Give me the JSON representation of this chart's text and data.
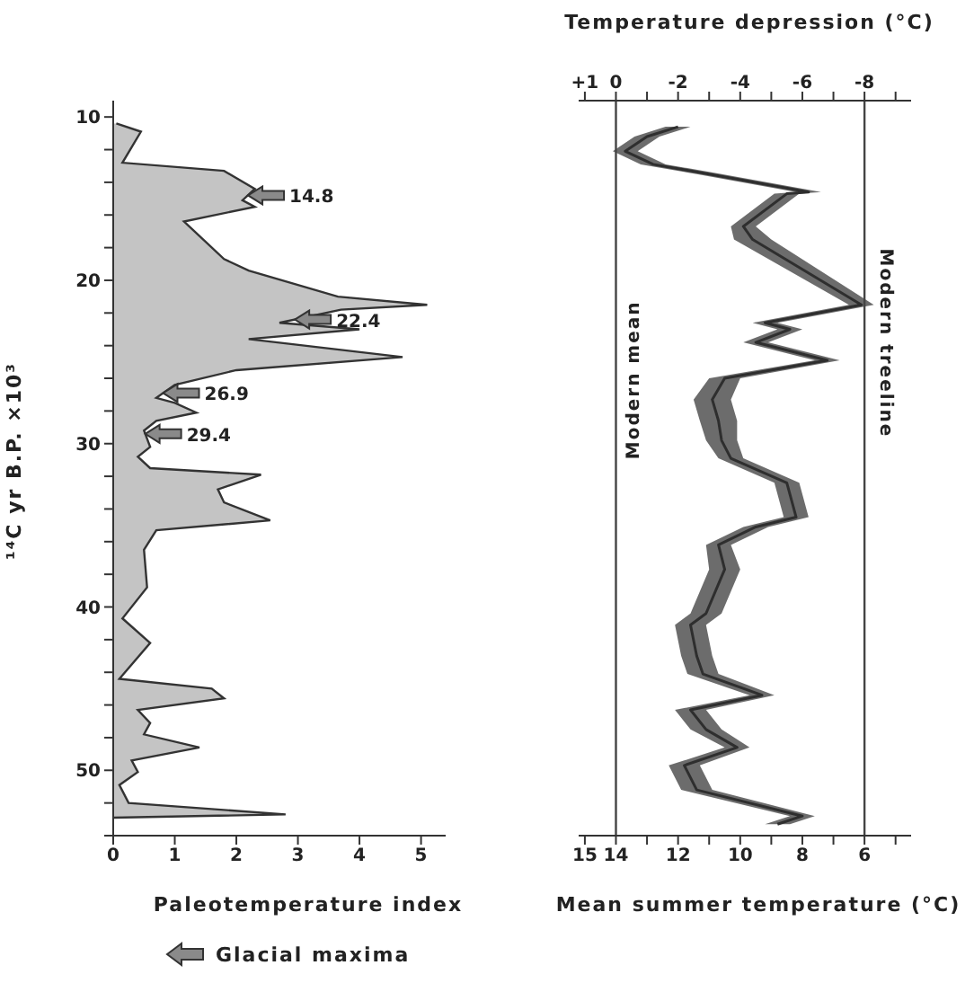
{
  "chart_data": [
    {
      "type": "area",
      "xlabel": "Paleotemperature index",
      "ylabel": "¹⁴C yr B.P. ×10³",
      "orientation": "horizontal",
      "color": "#c4c4c4",
      "x": [
        10.4,
        10.9,
        12.8,
        13.3,
        14.4,
        15.1,
        15.5,
        16.4,
        18.7,
        19.4,
        21.0,
        21.5,
        21.8,
        22.6,
        23.0,
        23.6,
        24.7,
        25.5,
        26.4,
        27.2,
        27.5,
        28.1,
        28.6,
        29.2,
        30.2,
        30.8,
        31.5,
        31.9,
        32.8,
        33.6,
        34.7,
        35.3,
        36.5,
        38.8,
        40.7,
        42.2,
        44.4,
        45.0,
        45.6,
        46.3,
        47.1,
        47.8,
        48.6,
        49.4,
        50.1,
        50.9,
        52.0,
        52.7,
        52.9
      ],
      "values": [
        0.05,
        0.45,
        0.15,
        1.8,
        2.3,
        2.1,
        2.3,
        1.15,
        1.8,
        2.2,
        3.65,
        5.1,
        3.7,
        2.7,
        4.0,
        2.2,
        4.7,
        2.0,
        1.0,
        0.7,
        1.0,
        1.35,
        0.7,
        0.5,
        0.6,
        0.4,
        0.6,
        2.4,
        1.7,
        1.8,
        2.55,
        0.7,
        0.5,
        0.55,
        0.15,
        0.6,
        0.1,
        1.6,
        1.8,
        0.4,
        0.6,
        0.5,
        1.4,
        0.3,
        0.4,
        0.1,
        0.25,
        2.8,
        0
      ],
      "xlim": [
        0,
        5.4
      ],
      "xticks": [
        0,
        1,
        2,
        3,
        4,
        5
      ],
      "ylim": [
        54,
        9
      ],
      "yticks": [
        10,
        {
          "value": 12,
          "label": null
        },
        {
          "value": 14,
          "label": null
        },
        {
          "value": 16,
          "label": null
        },
        {
          "value": 18,
          "label": null
        },
        20,
        {
          "value": 22,
          "label": null
        },
        {
          "value": 24,
          "label": null
        },
        {
          "value": 26,
          "label": null
        },
        {
          "value": 28,
          "label": null
        },
        30,
        {
          "value": 32,
          "label": null
        },
        {
          "value": 34,
          "label": null
        },
        {
          "value": 36,
          "label": null
        },
        {
          "value": 38,
          "label": null
        },
        40,
        {
          "value": 42,
          "label": null
        },
        {
          "value": 44,
          "label": null
        },
        {
          "value": 46,
          "label": null
        },
        {
          "value": 48,
          "label": null
        },
        50,
        {
          "value": 52,
          "label": null
        },
        {
          "value": 54,
          "label": null
        }
      ],
      "annotations": [
        {
          "text": "14.8",
          "x": 2.19,
          "y": 14.8
        },
        {
          "text": "22.4",
          "x": 2.95,
          "y": 22.4
        },
        {
          "text": "26.9",
          "x": 0.81,
          "y": 26.9
        },
        {
          "text": "29.4",
          "x": 0.52,
          "y": 29.4
        },
        "Glacial maxima"
      ]
    },
    {
      "type": "line",
      "xlabel": "Mean summer temperature (°C)",
      "x2label": "Temperature depression (°C)",
      "orientation": "horizontal",
      "series": [
        {
          "color": "#2e2e2e",
          "x": [
            10.6,
            11.2,
            12.1,
            12.9,
            13.5,
            14.6,
            14.7,
            16.7,
            17.5,
            21.5,
            22.6,
            23.0,
            23.8,
            24.9,
            26.0,
            27.3,
            28.6,
            29.8,
            30.9,
            32.4,
            34.5,
            35.1,
            36.2,
            37.7,
            40.4,
            41.1,
            43.0,
            44.1,
            45.4,
            46.3,
            47.5,
            48.6,
            49.7,
            51.2,
            52.8,
            53.3
          ],
          "values": [
            12.0,
            13.0,
            13.7,
            12.8,
            11.0,
            7.8,
            8.5,
            9.9,
            9.6,
            6.1,
            9.2,
            8.4,
            9.5,
            7.2,
            10.5,
            10.9,
            10.7,
            10.6,
            10.3,
            8.5,
            8.2,
            9.5,
            10.7,
            10.5,
            11.1,
            11.6,
            11.4,
            11.2,
            9.3,
            11.6,
            11.1,
            10.1,
            11.8,
            11.4,
            8.0,
            8.8
          ],
          "lower": [
            11.6,
            12.6,
            13.3,
            12.4,
            10.6,
            7.4,
            8.1,
            9.5,
            9.0,
            5.7,
            8.8,
            8.0,
            9.1,
            6.8,
            10.0,
            10.3,
            10.1,
            10.1,
            9.9,
            8.1,
            7.8,
            9.1,
            10.3,
            10.0,
            10.6,
            11.1,
            10.9,
            10.7,
            8.9,
            11.1,
            10.6,
            9.7,
            11.3,
            10.9,
            7.6,
            8.4
          ],
          "upper": [
            12.4,
            13.4,
            14.1,
            13.2,
            11.4,
            8.2,
            8.9,
            10.3,
            10.2,
            6.5,
            9.6,
            8.8,
            9.9,
            7.6,
            11.0,
            11.5,
            11.3,
            11.1,
            10.7,
            8.9,
            8.6,
            9.9,
            11.1,
            11.0,
            11.6,
            12.1,
            11.9,
            11.7,
            9.7,
            12.1,
            11.6,
            10.5,
            12.3,
            11.9,
            8.4,
            9.2
          ]
        }
      ],
      "xlim": [
        15.2,
        4.5
      ],
      "xticks": [
        15,
        14,
        {
          "value": 13,
          "label": null
        },
        12,
        {
          "value": 11,
          "label": null
        },
        10,
        {
          "value": 9,
          "label": null
        },
        8,
        {
          "value": 7,
          "label": null
        },
        6,
        {
          "value": 5,
          "label": null
        }
      ],
      "x2lim": [
        1.2,
        -9.5
      ],
      "x2ticks": [
        {
          "value": 1,
          "label": "+1"
        },
        0,
        {
          "value": -1,
          "label": null
        },
        -2,
        {
          "value": -3,
          "label": null
        },
        -4,
        {
          "value": -5,
          "label": null
        },
        -6,
        {
          "value": -7,
          "label": null
        },
        -8,
        {
          "value": -9,
          "label": null
        }
      ],
      "ylim": [
        54,
        9
      ],
      "tick_labels": "x",
      "ref_lines": [
        {
          "axis": "x",
          "value": 14,
          "label": "Modern mean",
          "color": "#444444"
        },
        {
          "axis": "x",
          "value": 6,
          "label": "Modern treeline",
          "color": "#444444"
        }
      ]
    }
  ]
}
